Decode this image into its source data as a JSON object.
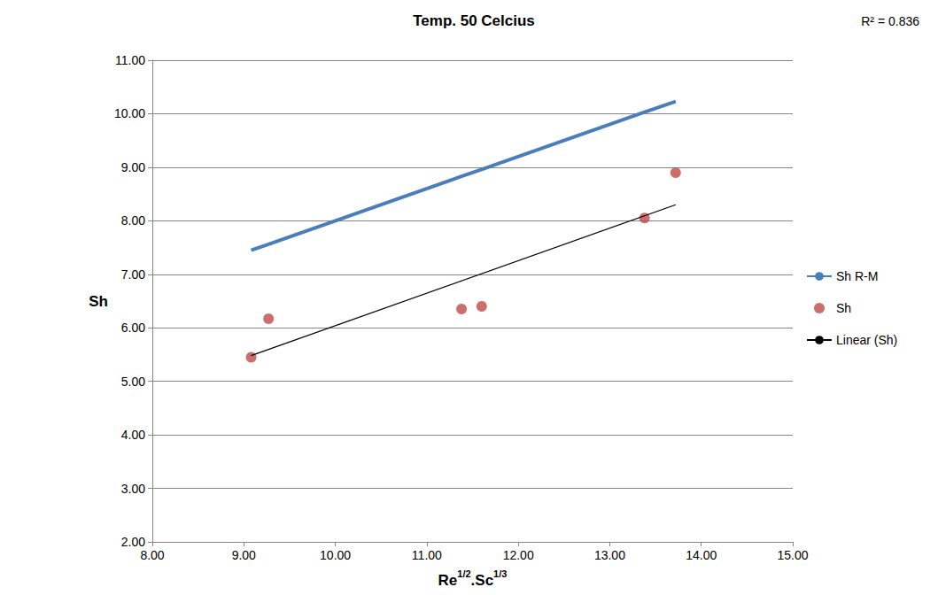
{
  "chart_data": {
    "type": "scatter",
    "title": "Temp. 50 Celcius",
    "annotations": [
      "R² = 0.836"
    ],
    "xlabel": [
      "Re",
      "1/2",
      ".Sc",
      "1/3"
    ],
    "ylabel": "Sh",
    "xlim": [
      8,
      15
    ],
    "xticks": [
      {
        "value": 8,
        "label": "8.00"
      },
      {
        "value": 9,
        "label": "9.00"
      },
      {
        "value": 10,
        "label": "10.00"
      },
      {
        "value": 11,
        "label": "11.00"
      },
      {
        "value": 12,
        "label": "12.00"
      },
      {
        "value": 13,
        "label": "13.00"
      },
      {
        "value": 14,
        "label": "14.00"
      },
      {
        "value": 15,
        "label": "15.00"
      }
    ],
    "ylim": [
      2,
      11
    ],
    "yticks": [
      {
        "value": 2,
        "label": "2.00"
      },
      {
        "value": 3,
        "label": "3.00"
      },
      {
        "value": 4,
        "label": "4.00"
      },
      {
        "value": 5,
        "label": "5.00"
      },
      {
        "value": 6,
        "label": "6.00"
      },
      {
        "value": 7,
        "label": "7.00"
      },
      {
        "value": 8,
        "label": "8.00"
      },
      {
        "value": 9,
        "label": "9.00"
      },
      {
        "value": 10,
        "label": "10.00"
      },
      {
        "value": 11,
        "label": "11.00"
      }
    ],
    "grid": "y",
    "legend": "right",
    "series": [
      {
        "name": "Sh R-M",
        "type": "line",
        "line_style": "solid",
        "color": "#4a7ebb",
        "x": [
          9.08,
          9.27,
          11.38,
          11.6,
          13.38,
          13.72
        ],
        "values": [
          7.45,
          7.56,
          8.83,
          8.96,
          10.03,
          10.23
        ]
      },
      {
        "name": "Sh",
        "type": "scatter",
        "marker": "circle",
        "color": "#be4b48",
        "x": [
          9.08,
          9.27,
          11.38,
          11.6,
          13.38,
          13.72
        ],
        "values": [
          5.45,
          6.17,
          6.35,
          6.4,
          8.05,
          8.9
        ]
      },
      {
        "name": "Linear (Sh)",
        "type": "line",
        "line_style": "solid",
        "color": "#000000",
        "x": [
          9.08,
          13.72
        ],
        "values": [
          5.48,
          8.3
        ]
      }
    ]
  }
}
